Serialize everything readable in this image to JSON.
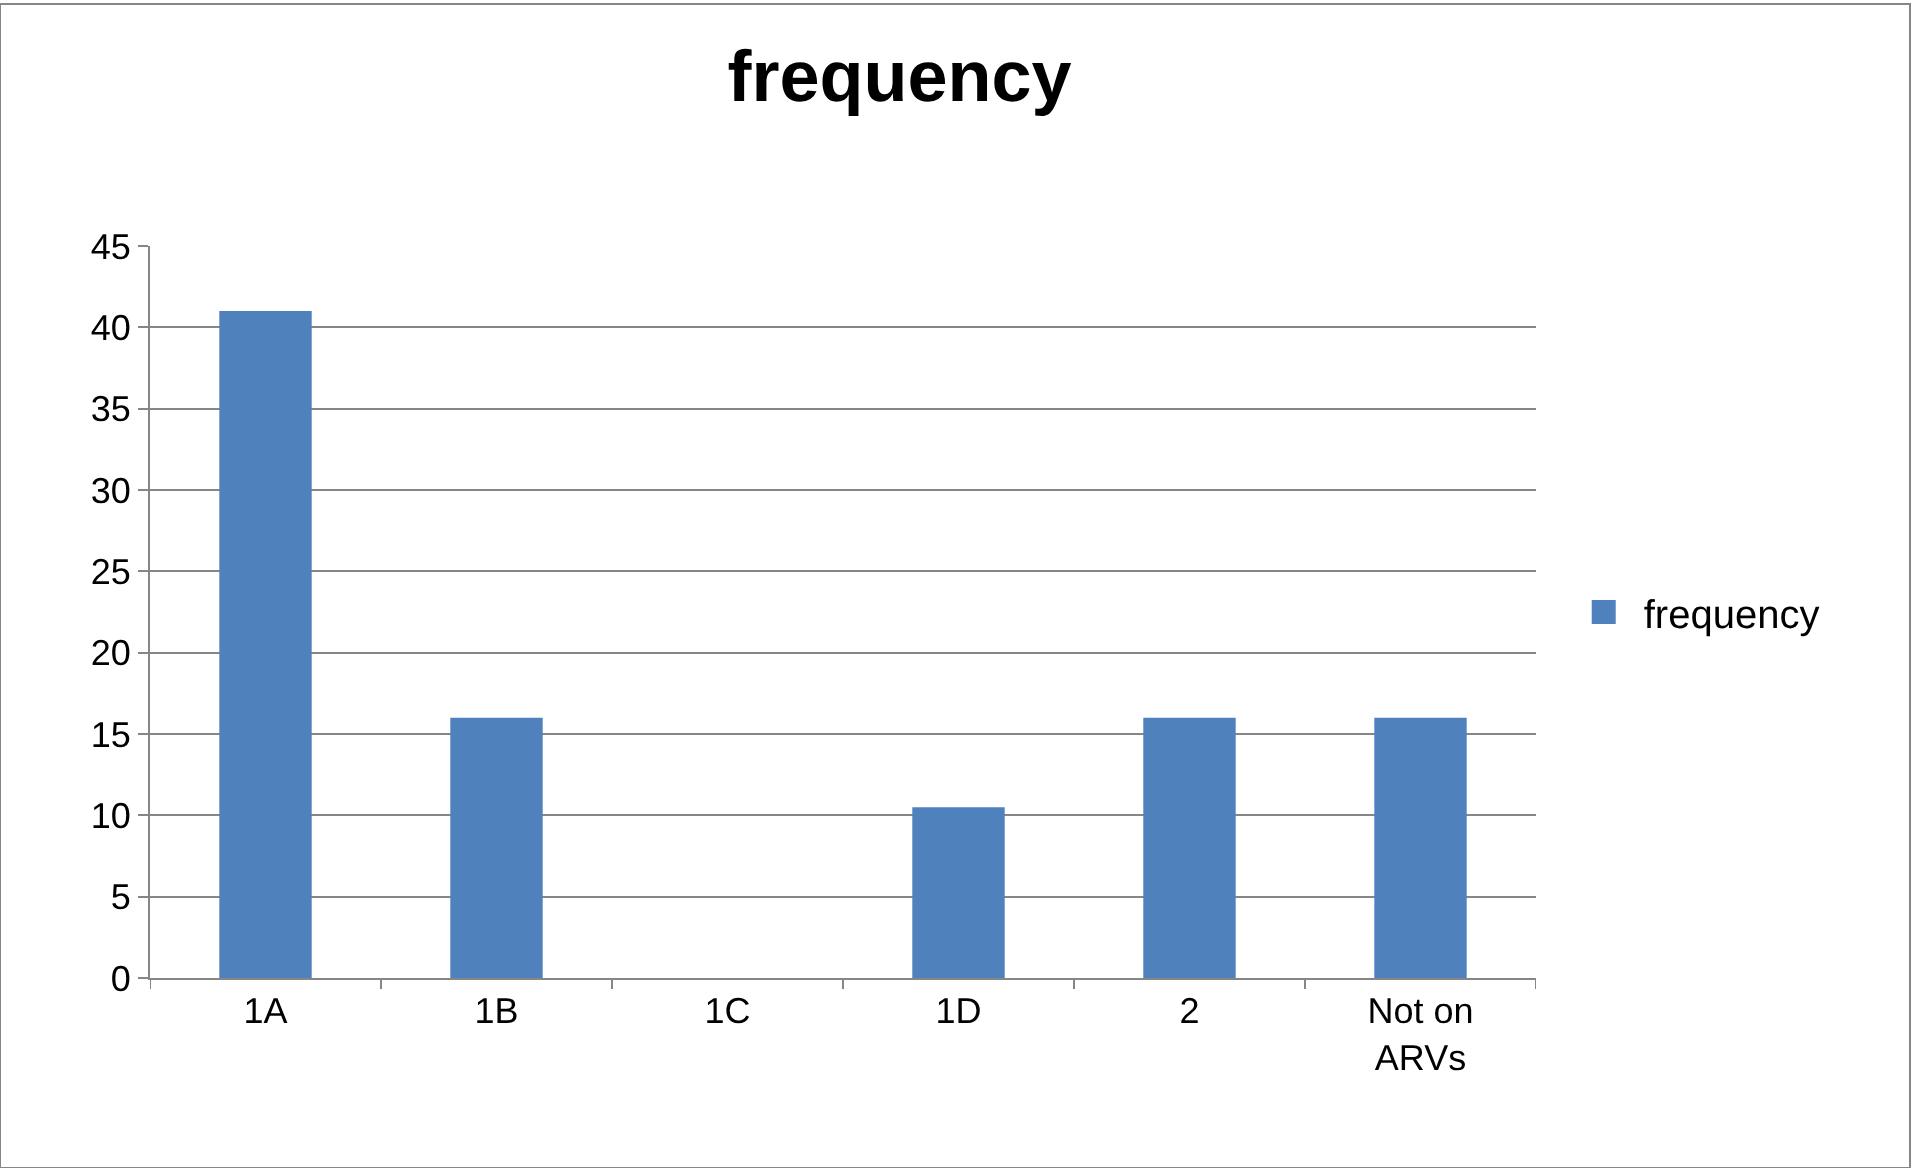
{
  "chart_data": {
    "type": "bar",
    "title": "frequency",
    "categories": [
      "1A",
      "1B",
      "1C",
      "1D",
      "2",
      "Not on ARVs"
    ],
    "series": [
      {
        "name": "frequency",
        "color": "#4f81bd",
        "values": [
          41,
          16,
          0,
          10.5,
          16,
          16
        ]
      }
    ],
    "ylim": [
      0,
      45
    ],
    "yticks": [
      0,
      5,
      10,
      15,
      20,
      25,
      30,
      35,
      40,
      45
    ],
    "grid": "y",
    "legend": "right"
  }
}
